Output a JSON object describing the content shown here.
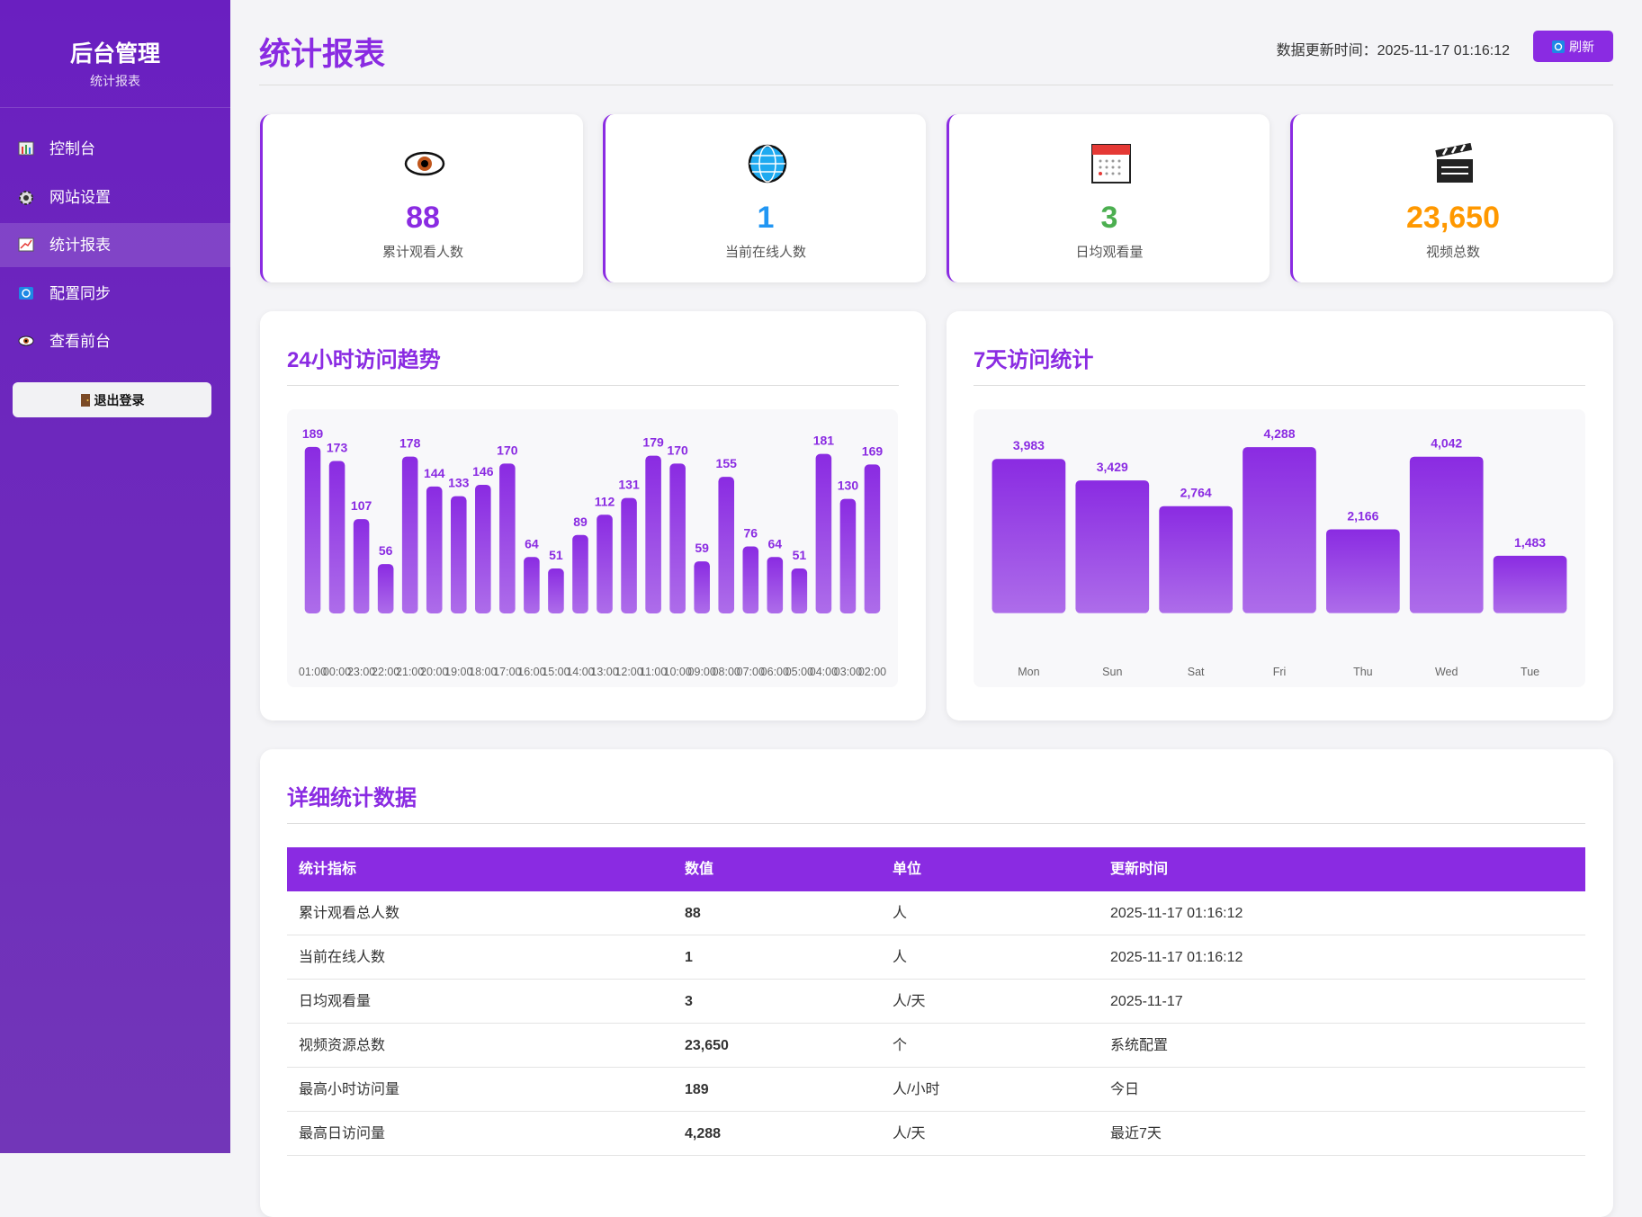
{
  "sidebar": {
    "title": "后台管理",
    "subtitle": "统计报表",
    "menu": [
      "控制台",
      "网站设置",
      "统计报表",
      "配置同步",
      "查看前台"
    ],
    "logout": "退出登录"
  },
  "header": {
    "title": "统计报表",
    "update_time": "数据更新时间：2025-11-17 01:16:12",
    "refresh": "刷新"
  },
  "cards": [
    {
      "value": "88",
      "label": "累计观看人数",
      "color": "#8a2be2"
    },
    {
      "value": "1",
      "label": "当前在线人数",
      "color": "#2196f3"
    },
    {
      "value": "3",
      "label": "日均观看量",
      "color": "#4caf50"
    },
    {
      "value": "23,650",
      "label": "视频总数",
      "color": "#ff9800"
    }
  ],
  "chart_data": [
    {
      "type": "bar",
      "title": "24小时访问趋势",
      "categories": [
        "01:00",
        "00:00",
        "23:00",
        "22:00",
        "21:00",
        "20:00",
        "19:00",
        "18:00",
        "17:00",
        "16:00",
        "15:00",
        "14:00",
        "13:00",
        "12:00",
        "11:00",
        "10:00",
        "09:00",
        "08:00",
        "07:00",
        "06:00",
        "05:00",
        "04:00",
        "03:00",
        "02:00"
      ],
      "values": [
        189,
        173,
        107,
        56,
        178,
        144,
        133,
        146,
        170,
        64,
        51,
        89,
        112,
        131,
        179,
        170,
        59,
        155,
        76,
        64,
        51,
        181,
        130,
        169
      ],
      "color": "#8a2be2",
      "ylim": [
        -48,
        198
      ]
    },
    {
      "type": "bar",
      "title": "7天访问统计",
      "categories": [
        "Mon",
        "Sun",
        "Sat",
        "Fri",
        "Thu",
        "Wed",
        "Tue"
      ],
      "values": [
        3983,
        3429,
        2764,
        4288,
        2166,
        4042,
        1483
      ],
      "value_labels": [
        "3,983",
        "3,429",
        "2,764",
        "4,288",
        "2,166",
        "4,042",
        "1,483"
      ],
      "color": "#8a2be2",
      "ylim": [
        -1100,
        4500
      ]
    }
  ],
  "table": {
    "title": "详细统计数据",
    "header": [
      "统计指标",
      "数值",
      "单位",
      "更新时间"
    ],
    "rows": [
      [
        "累计观看总人数",
        "88",
        "人",
        "2025-11-17 01:16:12"
      ],
      [
        "当前在线人数",
        "1",
        "人",
        "2025-11-17 01:16:12"
      ],
      [
        "日均观看量",
        "3",
        "人/天",
        "2025-11-17"
      ],
      [
        "视频资源总数",
        "23,650",
        "个",
        "系统配置"
      ],
      [
        "最高小时访问量",
        "189",
        "人/小时",
        "今日"
      ],
      [
        "最高日访问量",
        "4,288",
        "人/天",
        "最近7天"
      ]
    ]
  }
}
